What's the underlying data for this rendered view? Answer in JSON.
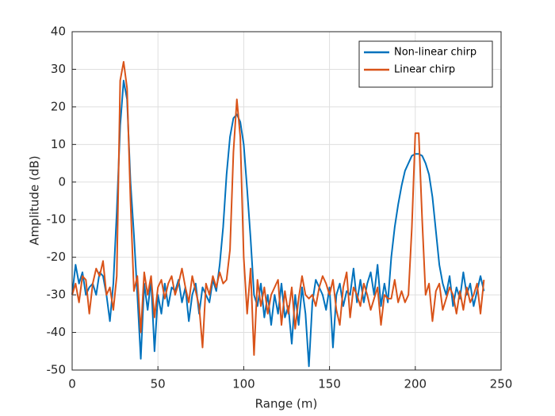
{
  "chart_data": {
    "type": "line",
    "x_label": "Range (m)",
    "y_label": "Amplitude (dB)",
    "x": [
      0,
      2,
      4,
      6,
      8,
      10,
      12,
      14,
      16,
      18,
      20,
      22,
      24,
      26,
      28,
      30,
      32,
      34,
      36,
      38,
      40,
      42,
      44,
      46,
      48,
      50,
      52,
      54,
      56,
      58,
      60,
      62,
      64,
      66,
      68,
      70,
      72,
      74,
      76,
      78,
      80,
      82,
      84,
      86,
      88,
      90,
      92,
      94,
      96,
      98,
      100,
      102,
      104,
      106,
      108,
      110,
      112,
      114,
      116,
      118,
      120,
      122,
      124,
      126,
      128,
      130,
      132,
      134,
      136,
      138,
      140,
      142,
      144,
      146,
      148,
      150,
      152,
      154,
      156,
      158,
      160,
      162,
      164,
      166,
      168,
      170,
      172,
      174,
      176,
      178,
      180,
      182,
      184,
      186,
      188,
      190,
      192,
      194,
      196,
      198,
      200,
      202,
      204,
      206,
      208,
      210,
      212,
      214,
      216,
      218,
      220,
      222,
      224,
      226,
      228,
      230,
      232,
      234,
      236,
      238,
      240
    ],
    "series": [
      {
        "name": "Non-linear chirp",
        "color": "#0072BD",
        "values": [
          -30,
          -22,
          -27,
          -24,
          -30,
          -28,
          -27,
          -30,
          -24,
          -25,
          -30,
          -37,
          -27,
          -8,
          15,
          27,
          22,
          0,
          -14,
          -30,
          -47,
          -27,
          -34,
          -26,
          -45,
          -30,
          -35,
          -27,
          -33,
          -28,
          -29,
          -26,
          -32,
          -28,
          -37,
          -30,
          -27,
          -35,
          -28,
          -30,
          -32,
          -26,
          -29,
          -22,
          -12,
          2,
          12,
          17,
          18,
          16,
          10,
          -2,
          -15,
          -30,
          -33,
          -27,
          -36,
          -30,
          -38,
          -30,
          -35,
          -27,
          -36,
          -33,
          -43,
          -30,
          -38,
          -28,
          -35,
          -49,
          -32,
          -26,
          -28,
          -30,
          -34,
          -28,
          -44,
          -30,
          -27,
          -33,
          -29,
          -30,
          -23,
          -32,
          -26,
          -32,
          -27,
          -24,
          -30,
          -22,
          -33,
          -27,
          -32,
          -20,
          -12,
          -6,
          -1,
          3,
          5,
          7,
          7.5,
          7.5,
          7,
          5,
          2,
          -4,
          -13,
          -22,
          -27,
          -30,
          -25,
          -33,
          -28,
          -31,
          -24,
          -30,
          -27,
          -33,
          -29,
          -25,
          -29
        ]
      },
      {
        "name": "Linear chirp",
        "color": "#D95319",
        "values": [
          -30,
          -27,
          -32,
          -25,
          -26,
          -35,
          -27,
          -23,
          -25,
          -21,
          -30,
          -28,
          -34,
          -25,
          27,
          32,
          25,
          -5,
          -29,
          -25,
          -40,
          -24,
          -30,
          -25,
          -36,
          -28,
          -26,
          -31,
          -27,
          -25,
          -30,
          -27,
          -23,
          -28,
          -32,
          -25,
          -29,
          -33,
          -44,
          -27,
          -30,
          -25,
          -28,
          -24,
          -27,
          -26,
          -18,
          8,
          22,
          12,
          -20,
          -35,
          -23,
          -46,
          -26,
          -33,
          -28,
          -35,
          -30,
          -28,
          -26,
          -38,
          -29,
          -35,
          -28,
          -39,
          -31,
          -25,
          -30,
          -31,
          -30,
          -33,
          -28,
          -25,
          -27,
          -30,
          -26,
          -34,
          -38,
          -28,
          -24,
          -36,
          -28,
          -30,
          -33,
          -27,
          -30,
          -34,
          -31,
          -28,
          -38,
          -30,
          -31,
          -31,
          -26,
          -32,
          -29,
          -32,
          -30,
          -12,
          13,
          13,
          -10,
          -30,
          -27,
          -37,
          -29,
          -27,
          -34,
          -31,
          -28,
          -30,
          -35,
          -29,
          -34,
          -28,
          -32,
          -30,
          -27,
          -35,
          -26
        ]
      }
    ],
    "xlim": [
      0,
      250
    ],
    "ylim": [
      -50,
      40
    ],
    "xticks": [
      0,
      50,
      100,
      150,
      200,
      250
    ],
    "yticks": [
      -50,
      -40,
      -30,
      -20,
      -10,
      0,
      10,
      20,
      30,
      40
    ],
    "grid": true,
    "legend": "northeast"
  }
}
